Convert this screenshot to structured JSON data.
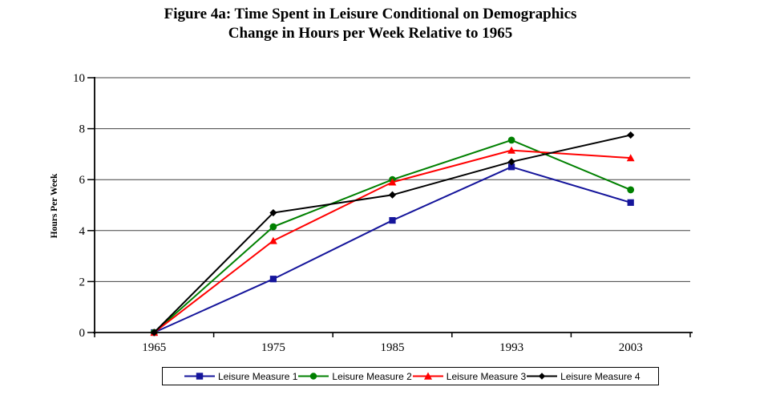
{
  "figure": {
    "title_line1": "Figure 4a: Time Spent in Leisure Conditional on Demographics",
    "title_line2": "Change in Hours per Week Relative to 1965"
  },
  "chart_data": {
    "type": "line",
    "title": "Figure 4a: Time Spent in Leisure Conditional on Demographics — Change in Hours per Week Relative to 1965",
    "categories": [
      "1965",
      "1975",
      "1985",
      "1993",
      "2003"
    ],
    "series": [
      {
        "name": "Leisure Measure 1",
        "color": "#15159b",
        "marker": "square",
        "values": [
          0,
          2.1,
          4.4,
          6.5,
          5.1
        ]
      },
      {
        "name": "Leisure Measure 2",
        "color": "#008000",
        "marker": "circle",
        "values": [
          0,
          4.15,
          6.0,
          7.55,
          5.6
        ]
      },
      {
        "name": "Leisure Measure 3",
        "color": "#ff0000",
        "marker": "triangle",
        "values": [
          0,
          3.6,
          5.9,
          7.15,
          6.85
        ]
      },
      {
        "name": "Leisure Measure 4",
        "color": "#000000",
        "marker": "diamond",
        "values": [
          0,
          4.7,
          5.4,
          6.7,
          7.75
        ]
      }
    ],
    "xlabel": "",
    "ylabel": "Hours Per Week",
    "ylim": [
      0,
      10
    ],
    "yticks": [
      0,
      2,
      4,
      6,
      8,
      10
    ],
    "grid": true,
    "legend_position": "bottom",
    "axis_color": "#000000",
    "grid_color": "#404040"
  }
}
